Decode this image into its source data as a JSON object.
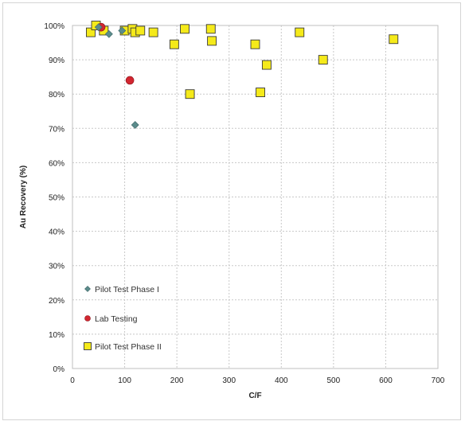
{
  "chart_data": {
    "type": "scatter",
    "xlabel": "C/F",
    "ylabel": "Au Recovery (%)",
    "xlim": [
      0,
      700
    ],
    "ylim": [
      0,
      100
    ],
    "x_ticks": [
      0,
      100,
      200,
      300,
      400,
      500,
      600,
      700
    ],
    "y_ticks": [
      0,
      10,
      20,
      30,
      40,
      50,
      60,
      70,
      80,
      90,
      100
    ],
    "x_tick_labels": [
      "0",
      "100",
      "200",
      "300",
      "400",
      "500",
      "600",
      "700"
    ],
    "y_tick_labels": [
      "0%",
      "10%",
      "20%",
      "30%",
      "40%",
      "50%",
      "60%",
      "70%",
      "80%",
      "90%",
      "100%"
    ],
    "grid": true,
    "legend_position": "bottom-left",
    "series": [
      {
        "name": "Pilot Test Phase I",
        "marker": "diamond",
        "color": "#5b8c8c",
        "points": [
          [
            50,
            99.5
          ],
          [
            70,
            97.5
          ],
          [
            95,
            98.5
          ],
          [
            120,
            71
          ]
        ]
      },
      {
        "name": "Lab Testing",
        "marker": "circle",
        "color": "#d22630",
        "points": [
          [
            55,
            99.5
          ],
          [
            110,
            84
          ]
        ]
      },
      {
        "name": "Pilot Test Phase II",
        "marker": "square",
        "color": "#f5ea1a",
        "points": [
          [
            35,
            98
          ],
          [
            45,
            100
          ],
          [
            60,
            98.5
          ],
          [
            100,
            98.5
          ],
          [
            115,
            99
          ],
          [
            120,
            98
          ],
          [
            130,
            98.5
          ],
          [
            155,
            98
          ],
          [
            195,
            94.5
          ],
          [
            215,
            99
          ],
          [
            225,
            80
          ],
          [
            265,
            99
          ],
          [
            267,
            95.5
          ],
          [
            350,
            94.5
          ],
          [
            360,
            80.5
          ],
          [
            372,
            88.5
          ],
          [
            435,
            98
          ],
          [
            480,
            90
          ],
          [
            615,
            96
          ]
        ]
      }
    ]
  }
}
